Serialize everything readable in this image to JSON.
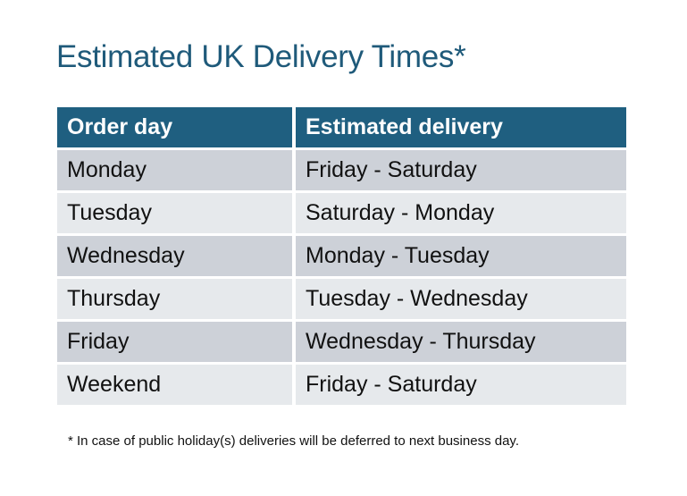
{
  "title": "Estimated UK Delivery Times*",
  "table": {
    "headers": [
      "Order day",
      "Estimated delivery"
    ],
    "rows": [
      [
        "Monday",
        "Friday - Saturday"
      ],
      [
        "Tuesday",
        "Saturday - Monday"
      ],
      [
        "Wednesday",
        "Monday - Tuesday"
      ],
      [
        "Thursday",
        "Tuesday - Wednesday"
      ],
      [
        "Friday",
        "Wednesday - Thursday"
      ],
      [
        "Weekend",
        "Friday - Saturday"
      ]
    ]
  },
  "footnote": "* In case of public holiday(s) deliveries will be deferred to next business day.",
  "colors": {
    "header_bg": "#1f5f80",
    "row_dark": "#cdd1d8",
    "row_light": "#e6e9ec",
    "title": "#1f5a7a"
  }
}
